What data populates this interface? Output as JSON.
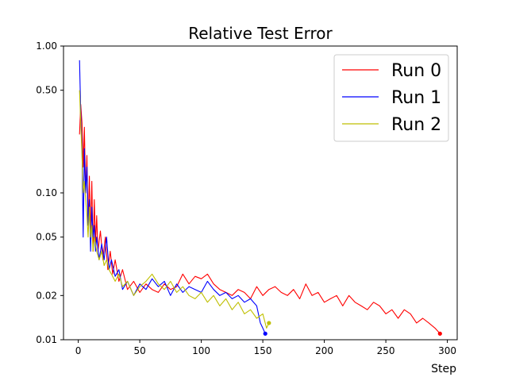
{
  "chart_data": {
    "type": "line",
    "title": "Relative Test Error",
    "xlabel": "Step",
    "ylabel": "",
    "xlim": [
      -12,
      308
    ],
    "ylim": [
      0.01,
      1.0
    ],
    "yscale": "log",
    "x_ticks": [
      0,
      50,
      100,
      150,
      200,
      250,
      300
    ],
    "x_tick_labels": [
      "0",
      "50",
      "100",
      "150",
      "200",
      "250",
      "300"
    ],
    "y_ticks": [
      0.01,
      0.02,
      0.05,
      0.1,
      0.5,
      1.0
    ],
    "y_tick_labels": [
      "0.01",
      "0.02",
      "0.05",
      "0.10",
      "0.50",
      "1.00"
    ],
    "grid": false,
    "legend_position": "top-right",
    "series": [
      {
        "name": "Run 0",
        "color": "#ff0000",
        "end_marker": true,
        "x": [
          1,
          2,
          3,
          4,
          5,
          6,
          7,
          8,
          9,
          10,
          11,
          12,
          13,
          14,
          15,
          16,
          18,
          20,
          22,
          24,
          26,
          28,
          30,
          33,
          36,
          40,
          45,
          50,
          55,
          60,
          65,
          70,
          75,
          80,
          85,
          90,
          95,
          100,
          105,
          110,
          115,
          120,
          125,
          130,
          135,
          140,
          145,
          150,
          155,
          160,
          165,
          170,
          175,
          180,
          185,
          190,
          195,
          200,
          205,
          210,
          215,
          220,
          225,
          230,
          235,
          240,
          245,
          250,
          255,
          260,
          265,
          270,
          275,
          280,
          285,
          290,
          294
        ],
        "y": [
          0.25,
          0.4,
          0.3,
          0.15,
          0.28,
          0.1,
          0.18,
          0.06,
          0.13,
          0.05,
          0.12,
          0.04,
          0.09,
          0.045,
          0.07,
          0.04,
          0.055,
          0.035,
          0.05,
          0.03,
          0.04,
          0.028,
          0.035,
          0.025,
          0.03,
          0.022,
          0.025,
          0.021,
          0.024,
          0.022,
          0.021,
          0.024,
          0.022,
          0.023,
          0.028,
          0.024,
          0.027,
          0.026,
          0.028,
          0.024,
          0.022,
          0.021,
          0.02,
          0.022,
          0.021,
          0.019,
          0.023,
          0.02,
          0.022,
          0.023,
          0.021,
          0.02,
          0.022,
          0.019,
          0.024,
          0.02,
          0.021,
          0.018,
          0.019,
          0.02,
          0.017,
          0.02,
          0.018,
          0.017,
          0.016,
          0.018,
          0.017,
          0.015,
          0.016,
          0.014,
          0.016,
          0.015,
          0.013,
          0.014,
          0.013,
          0.012,
          0.011
        ]
      },
      {
        "name": "Run 1",
        "color": "#0000ff",
        "end_marker": true,
        "x": [
          1,
          2,
          3,
          4,
          5,
          6,
          7,
          8,
          9,
          10,
          11,
          12,
          13,
          14,
          15,
          17,
          19,
          21,
          23,
          25,
          27,
          30,
          33,
          36,
          40,
          45,
          50,
          55,
          60,
          65,
          70,
          75,
          80,
          85,
          90,
          95,
          100,
          105,
          110,
          115,
          120,
          125,
          130,
          135,
          140,
          145,
          148,
          150,
          152
        ],
        "y": [
          0.8,
          0.35,
          0.2,
          0.05,
          0.2,
          0.1,
          0.15,
          0.06,
          0.09,
          0.04,
          0.08,
          0.05,
          0.06,
          0.04,
          0.05,
          0.035,
          0.045,
          0.035,
          0.05,
          0.03,
          0.035,
          0.027,
          0.03,
          0.022,
          0.025,
          0.02,
          0.024,
          0.022,
          0.026,
          0.023,
          0.025,
          0.02,
          0.024,
          0.021,
          0.023,
          0.022,
          0.021,
          0.025,
          0.022,
          0.02,
          0.021,
          0.019,
          0.02,
          0.018,
          0.019,
          0.017,
          0.013,
          0.012,
          0.011
        ]
      },
      {
        "name": "Run 2",
        "color": "#bfbf00",
        "end_marker": true,
        "x": [
          1,
          2,
          3,
          4,
          5,
          6,
          7,
          8,
          9,
          10,
          11,
          12,
          13,
          14,
          15,
          17,
          19,
          21,
          23,
          25,
          27,
          30,
          33,
          36,
          40,
          45,
          50,
          55,
          60,
          65,
          70,
          75,
          80,
          85,
          90,
          95,
          100,
          105,
          110,
          115,
          120,
          125,
          130,
          135,
          140,
          145,
          150,
          153,
          155
        ],
        "y": [
          0.5,
          0.3,
          0.18,
          0.1,
          0.12,
          0.09,
          0.07,
          0.05,
          0.08,
          0.05,
          0.06,
          0.04,
          0.05,
          0.045,
          0.04,
          0.035,
          0.04,
          0.032,
          0.035,
          0.03,
          0.028,
          0.025,
          0.028,
          0.023,
          0.025,
          0.02,
          0.023,
          0.025,
          0.028,
          0.024,
          0.022,
          0.025,
          0.021,
          0.023,
          0.02,
          0.019,
          0.021,
          0.018,
          0.02,
          0.017,
          0.019,
          0.016,
          0.018,
          0.015,
          0.016,
          0.014,
          0.015,
          0.012,
          0.013
        ]
      }
    ]
  }
}
